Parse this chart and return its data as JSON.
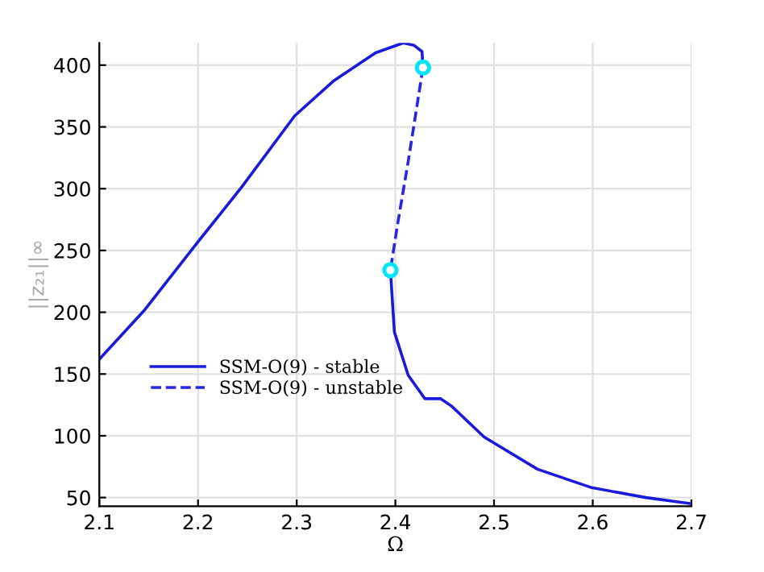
{
  "chart_data": {
    "type": "line",
    "xlabel": "Ω",
    "ylabel": "||z₂₁||∞",
    "series": [
      {
        "name": "SSM-O(9) - stable",
        "color": "#1a1adb",
        "line_style": "solid",
        "marker": "none",
        "x": [
          2.1,
          2.145,
          2.2,
          2.244,
          2.298,
          2.337,
          2.38,
          2.408,
          2.419,
          2.427,
          2.428,
          null,
          2.395,
          2.399,
          2.413,
          2.43,
          2.446,
          2.457,
          2.49,
          2.544,
          2.599,
          2.654,
          2.7
        ],
        "values": [
          162,
          201,
          257,
          301,
          359,
          387,
          410,
          418,
          416,
          411,
          398,
          null,
          234,
          184,
          149,
          130,
          130,
          124,
          99,
          73,
          58,
          50,
          45
        ]
      },
      {
        "name": "SSM-O(9) - unstable",
        "color": "#2626e6",
        "line_style": "dashed",
        "marker": "none",
        "x": [
          2.428,
          2.413,
          2.402,
          2.395
        ],
        "values": [
          398,
          322,
          270,
          234
        ]
      },
      {
        "type": "scatter",
        "color": "#00e5ff",
        "marker": "circle",
        "x": [
          2.428,
          2.395
        ],
        "values": [
          398,
          234
        ]
      }
    ],
    "xlim": [
      2.1,
      2.7
    ],
    "ylim": [
      43,
      418
    ],
    "xticks": [
      2.1,
      2.2,
      2.3,
      2.4,
      2.5,
      2.6,
      2.7
    ],
    "yticks": [
      50,
      100,
      150,
      200,
      250,
      300,
      350,
      400
    ],
    "grid": true,
    "legend": "bottom left"
  }
}
